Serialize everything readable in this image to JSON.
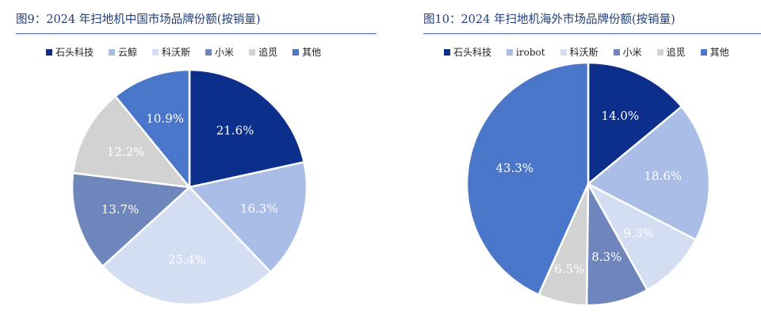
{
  "chart_data": [
    {
      "type": "pie",
      "title": "图9：2024 年扫地机中国市场品牌份额(按销量)",
      "categories": [
        "石头科技",
        "云鲸",
        "科沃斯",
        "小米",
        "追觅",
        "其他"
      ],
      "values": [
        21.6,
        16.3,
        25.4,
        13.7,
        12.2,
        10.9
      ],
      "labels": [
        "21.6%",
        "16.3%",
        "25.4%",
        "13.7%",
        "12.2%",
        "10.9%"
      ],
      "colors": [
        "#0b2f8a",
        "#a9bde6",
        "#d3def3",
        "#6f86bd",
        "#d2d2d2",
        "#4a77c9"
      ],
      "label_colors": [
        "#ffffff",
        "#ffffff",
        "#ffffff",
        "#ffffff",
        "#ffffff",
        "#ffffff"
      ],
      "legend_placement": "top",
      "start_angle": 0,
      "direction": "clockwise"
    },
    {
      "type": "pie",
      "title": "图10：2024 年扫地机海外市场品牌份额(按销量)",
      "categories": [
        "石头科技",
        "irobot",
        "科沃斯",
        "小米",
        "追觅",
        "其他"
      ],
      "values": [
        14.0,
        18.6,
        9.3,
        8.3,
        6.5,
        43.3
      ],
      "labels": [
        "14.0%",
        "18.6%",
        "9.3%",
        "8.3%",
        "6.5%",
        "43.3%"
      ],
      "colors": [
        "#0b2f8a",
        "#a9bde6",
        "#d3def3",
        "#6f86bd",
        "#d2d2d2",
        "#4a77c9"
      ],
      "label_colors": [
        "#ffffff",
        "#ffffff",
        "#ffffff",
        "#ffffff",
        "#ffffff",
        "#ffffff"
      ],
      "legend_placement": "top",
      "start_angle": 0,
      "direction": "clockwise"
    }
  ]
}
